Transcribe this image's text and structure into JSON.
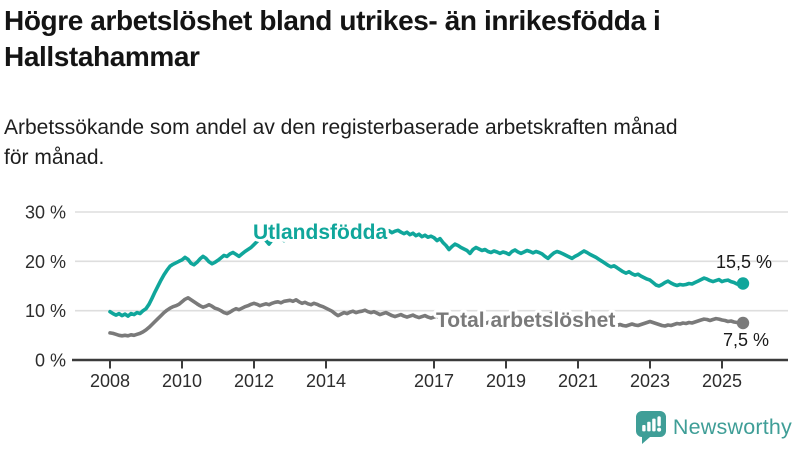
{
  "header": {
    "title_lines": [
      "Högre arbetslöshet bland utrikes- än inrikesfödda i",
      "Hallstahammar"
    ],
    "subtitle_lines": [
      "Arbetssökande som andel av den registerbaserade arbetskraften månad",
      "för månad."
    ]
  },
  "colors": {
    "teal": "#10a69b",
    "gray": "#7a7a7a",
    "grid": "#dedede",
    "axis": "#3b3b3b",
    "tick_text": "#2d2d2d",
    "value_text": "#1a1a1a",
    "brand": "#3f9e97"
  },
  "chart_data": {
    "type": "line",
    "x_start_year": 2008,
    "points_per_year": 12,
    "x_tick_years": [
      2008,
      2010,
      2012,
      2014,
      2017,
      2019,
      2021,
      2023,
      2025
    ],
    "y_ticks": [
      {
        "v": 0,
        "label": "0 %"
      },
      {
        "v": 10,
        "label": "10 %"
      },
      {
        "v": 20,
        "label": "20 %"
      },
      {
        "v": 30,
        "label": "30 %"
      }
    ],
    "ylim": [
      0,
      30
    ],
    "grid": true,
    "legend_position": "inline-labels",
    "series": [
      {
        "name": "Utlandsfödda",
        "color": "#10a69b",
        "end_label": "15,5 %",
        "end_value": 15.5,
        "values": [
          9.8,
          9.4,
          9.1,
          9.4,
          9.0,
          9.3,
          8.9,
          9.4,
          9.2,
          9.6,
          9.4,
          10.0,
          10.4,
          11.3,
          12.5,
          13.8,
          15.0,
          16.2,
          17.3,
          18.2,
          19.0,
          19.4,
          19.7,
          20.0,
          20.3,
          20.8,
          20.4,
          19.6,
          19.3,
          19.8,
          20.5,
          21.0,
          20.6,
          19.9,
          19.5,
          19.8,
          20.2,
          20.7,
          21.2,
          21.0,
          21.5,
          21.8,
          21.4,
          21.0,
          21.5,
          22.0,
          22.4,
          22.8,
          23.4,
          24.0,
          24.6,
          25.0,
          24.2,
          23.5,
          24.3,
          24.8,
          24.4,
          24.7,
          24.2,
          24.6,
          25.0,
          24.4,
          25.1,
          24.6,
          25.2,
          24.8,
          25.0,
          24.6,
          25.1,
          24.8,
          25.2,
          25.0,
          25.3,
          25.6,
          25.2,
          25.5,
          25.0,
          25.4,
          25.7,
          25.3,
          25.8,
          25.5,
          26.0,
          25.7,
          26.2,
          25.8,
          26.3,
          25.9,
          26.1,
          25.7,
          26.0,
          25.6,
          25.9,
          26.2,
          25.8,
          26.1,
          26.3,
          25.9,
          25.6,
          25.9,
          25.4,
          25.7,
          25.2,
          25.5,
          25.0,
          25.3,
          24.9,
          25.1,
          24.8,
          24.2,
          24.6,
          23.8,
          23.2,
          22.4,
          23.0,
          23.5,
          23.2,
          22.8,
          22.5,
          22.2,
          21.6,
          22.4,
          22.8,
          22.5,
          22.2,
          22.4,
          22.0,
          21.8,
          22.1,
          21.9,
          21.6,
          21.9,
          21.7,
          21.4,
          22.0,
          22.3,
          21.9,
          21.6,
          21.9,
          22.2,
          22.0,
          21.7,
          22.0,
          21.8,
          21.5,
          21.0,
          20.6,
          21.2,
          21.7,
          22.0,
          21.8,
          21.5,
          21.2,
          20.9,
          20.6,
          21.0,
          21.3,
          21.7,
          22.1,
          21.8,
          21.4,
          21.1,
          20.8,
          20.4,
          20.0,
          19.6,
          19.2,
          18.9,
          19.1,
          18.7,
          18.3,
          17.9,
          17.6,
          17.9,
          17.5,
          17.2,
          17.4,
          17.0,
          16.7,
          16.4,
          16.2,
          15.7,
          15.2,
          15.0,
          15.3,
          15.7,
          16.0,
          15.6,
          15.3,
          15.1,
          15.3,
          15.2,
          15.3,
          15.5,
          15.4,
          15.7,
          16.0,
          16.3,
          16.6,
          16.4,
          16.1,
          15.9,
          16.1,
          16.3,
          15.9,
          16.1,
          16.2,
          15.9,
          15.7,
          15.4,
          15.3,
          15.5
        ]
      },
      {
        "name": "Total arbetslöshet",
        "color": "#7a7a7a",
        "end_label": "7,5 %",
        "end_value": 7.5,
        "values": [
          5.5,
          5.4,
          5.2,
          5.0,
          4.9,
          5.0,
          4.9,
          5.1,
          5.0,
          5.2,
          5.4,
          5.7,
          6.1,
          6.6,
          7.2,
          7.8,
          8.4,
          9.0,
          9.6,
          10.1,
          10.5,
          10.8,
          11.0,
          11.3,
          11.8,
          12.3,
          12.6,
          12.2,
          11.8,
          11.4,
          11.0,
          10.7,
          10.9,
          11.2,
          10.9,
          10.5,
          10.3,
          10.0,
          9.6,
          9.4,
          9.7,
          10.1,
          10.4,
          10.2,
          10.5,
          10.8,
          11.0,
          11.3,
          11.5,
          11.3,
          11.0,
          11.2,
          11.4,
          11.2,
          11.5,
          11.7,
          11.8,
          11.6,
          11.9,
          12.0,
          12.1,
          11.9,
          12.2,
          11.8,
          11.5,
          11.7,
          11.4,
          11.2,
          11.5,
          11.3,
          11.0,
          10.8,
          10.5,
          10.2,
          9.9,
          9.4,
          9.0,
          9.3,
          9.6,
          9.4,
          9.7,
          9.9,
          9.6,
          9.8,
          9.9,
          10.1,
          9.8,
          9.6,
          9.8,
          9.5,
          9.2,
          9.4,
          9.6,
          9.3,
          9.0,
          8.8,
          9.0,
          9.2,
          8.9,
          8.7,
          8.9,
          9.1,
          8.8,
          8.6,
          8.8,
          9.0,
          8.7,
          8.5,
          8.7,
          8.9,
          8.6,
          8.4,
          8.6,
          8.3,
          8.1,
          8.3,
          8.5,
          8.2,
          8.0,
          7.9,
          8.0,
          7.8,
          7.6,
          7.8,
          7.6,
          7.4,
          7.6,
          7.8,
          7.5,
          7.3,
          7.5,
          7.4,
          7.3,
          7.5,
          7.2,
          7.4,
          7.6,
          7.4,
          7.6,
          7.8,
          7.6,
          7.8,
          8.0,
          8.2,
          8.4,
          8.6,
          9.0,
          9.4,
          9.6,
          9.4,
          9.2,
          9.0,
          8.8,
          8.6,
          8.4,
          8.6,
          8.4,
          8.2,
          8.4,
          8.2,
          8.0,
          7.8,
          7.6,
          7.8,
          7.6,
          7.4,
          7.2,
          7.4,
          7.2,
          7.0,
          7.2,
          7.0,
          6.9,
          7.1,
          7.3,
          7.1,
          7.0,
          7.2,
          7.4,
          7.6,
          7.8,
          7.6,
          7.4,
          7.2,
          7.0,
          6.9,
          7.1,
          7.0,
          7.2,
          7.4,
          7.3,
          7.5,
          7.4,
          7.6,
          7.5,
          7.7,
          7.9,
          8.1,
          8.3,
          8.2,
          8.0,
          8.2,
          8.4,
          8.3,
          8.1,
          8.0,
          7.8,
          7.9,
          7.7,
          7.6,
          7.4,
          7.5
        ]
      }
    ]
  },
  "footer": {
    "brand": "Newsworthy"
  }
}
